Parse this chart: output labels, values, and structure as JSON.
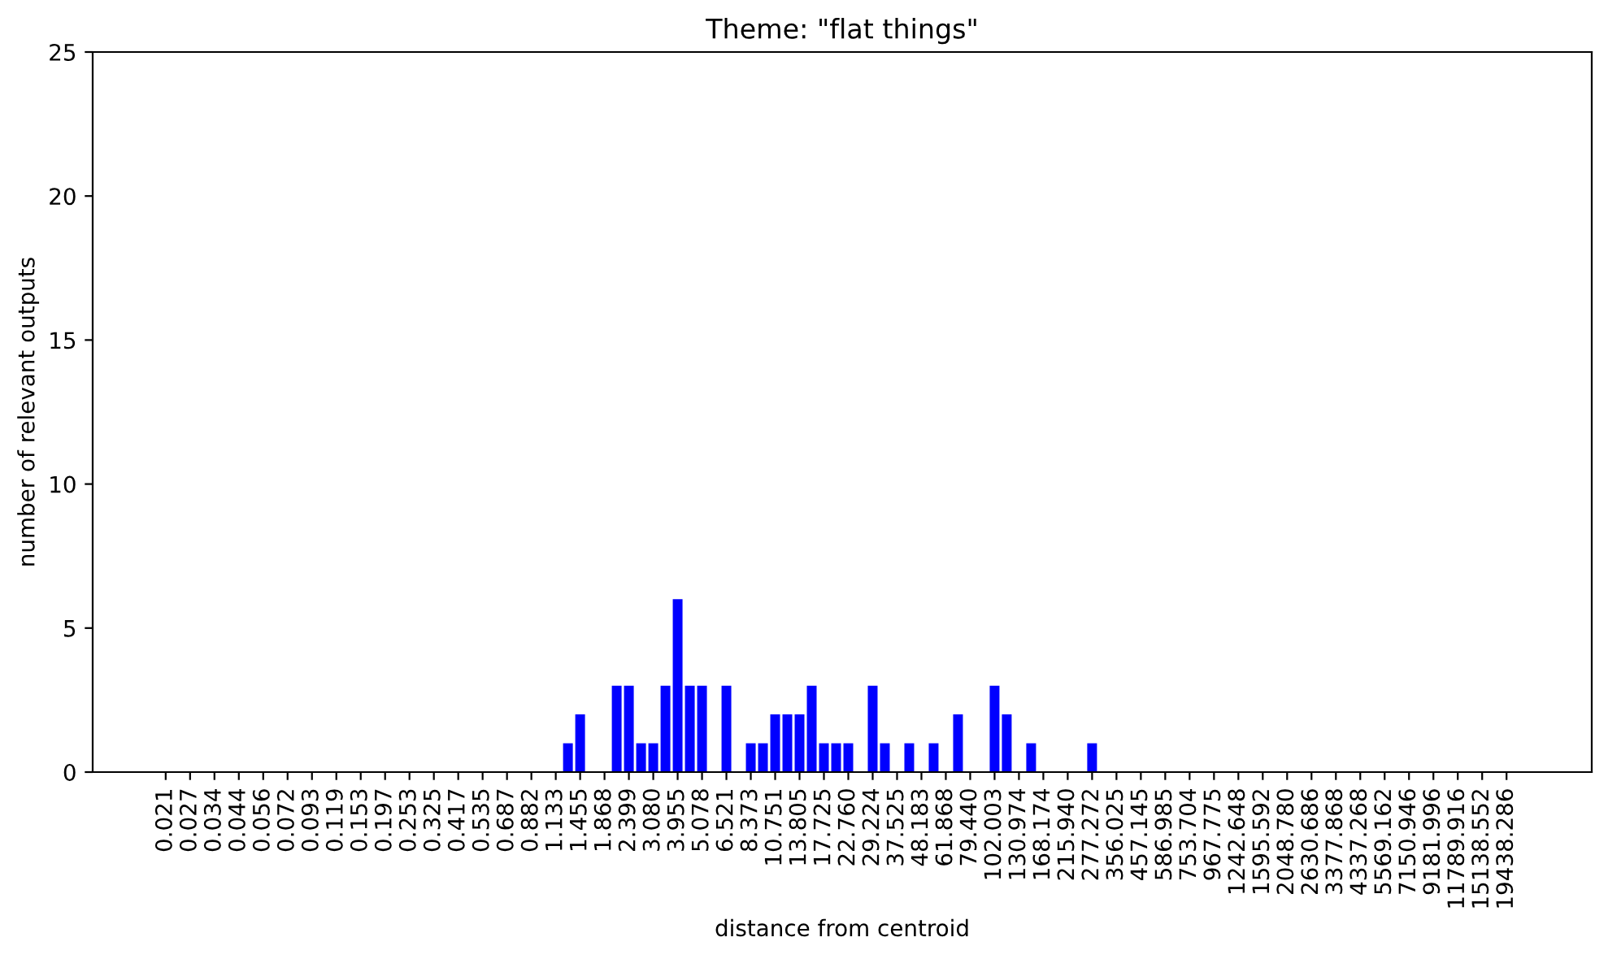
{
  "chart_data": {
    "type": "bar",
    "title": "Theme: \"flat things\"",
    "xlabel": "distance from centroid",
    "ylabel": "number of relevant outputs",
    "categories": [
      "0.021",
      null,
      "0.027",
      null,
      "0.034",
      null,
      "0.044",
      null,
      "0.056",
      null,
      "0.072",
      null,
      "0.093",
      null,
      "0.119",
      null,
      "0.153",
      null,
      "0.197",
      null,
      "0.253",
      null,
      "0.325",
      null,
      "0.417",
      null,
      "0.535",
      null,
      "0.687",
      null,
      "0.882",
      null,
      "1.133",
      null,
      "1.455",
      null,
      "1.868",
      null,
      "2.399",
      null,
      "3.080",
      null,
      "3.955",
      null,
      "5.078",
      null,
      "6.521",
      null,
      "8.373",
      null,
      "10.751",
      null,
      "13.805",
      null,
      "17.725",
      null,
      "22.760",
      null,
      "29.224",
      null,
      "37.525",
      null,
      "48.183",
      null,
      "61.868",
      null,
      "79.440",
      null,
      "102.003",
      null,
      "130.974",
      null,
      "168.174",
      null,
      "215.940",
      null,
      "277.272",
      null,
      "356.025",
      null,
      "457.145",
      null,
      "586.985",
      null,
      "753.704",
      null,
      "967.775",
      null,
      "1242.648",
      null,
      "1595.592",
      null,
      "2048.780",
      null,
      "2630.686",
      null,
      "3377.868",
      null,
      "4337.268",
      null,
      "5569.162",
      null,
      "7150.946",
      null,
      "9181.996",
      null,
      "11789.916",
      null,
      "15138.552",
      null,
      "19438.286",
      null
    ],
    "values": [
      0,
      0,
      0,
      0,
      0,
      0,
      0,
      0,
      0,
      0,
      0,
      0,
      0,
      0,
      0,
      0,
      0,
      0,
      0,
      0,
      0,
      0,
      0,
      0,
      0,
      0,
      0,
      0,
      0,
      0,
      0,
      0,
      0,
      1,
      2,
      0,
      0,
      3,
      3,
      1,
      1,
      3,
      6,
      3,
      3,
      0,
      3,
      0,
      1,
      1,
      2,
      2,
      2,
      3,
      1,
      1,
      1,
      0,
      3,
      1,
      0,
      1,
      0,
      1,
      0,
      2,
      0,
      0,
      3,
      2,
      0,
      1,
      0,
      0,
      0,
      0,
      1,
      0,
      0,
      0,
      0,
      0,
      0,
      0,
      0,
      0,
      0,
      0,
      0,
      0,
      0,
      0,
      0,
      0,
      0,
      0,
      0,
      0,
      0,
      0,
      0,
      0,
      0,
      0,
      0,
      0,
      0,
      0,
      0,
      0,
      0,
      0
    ],
    "color": "#0000ff",
    "ylim": [
      0,
      25
    ],
    "yticks": [
      0,
      5,
      10,
      15,
      20,
      25
    ],
    "grid": false
  }
}
